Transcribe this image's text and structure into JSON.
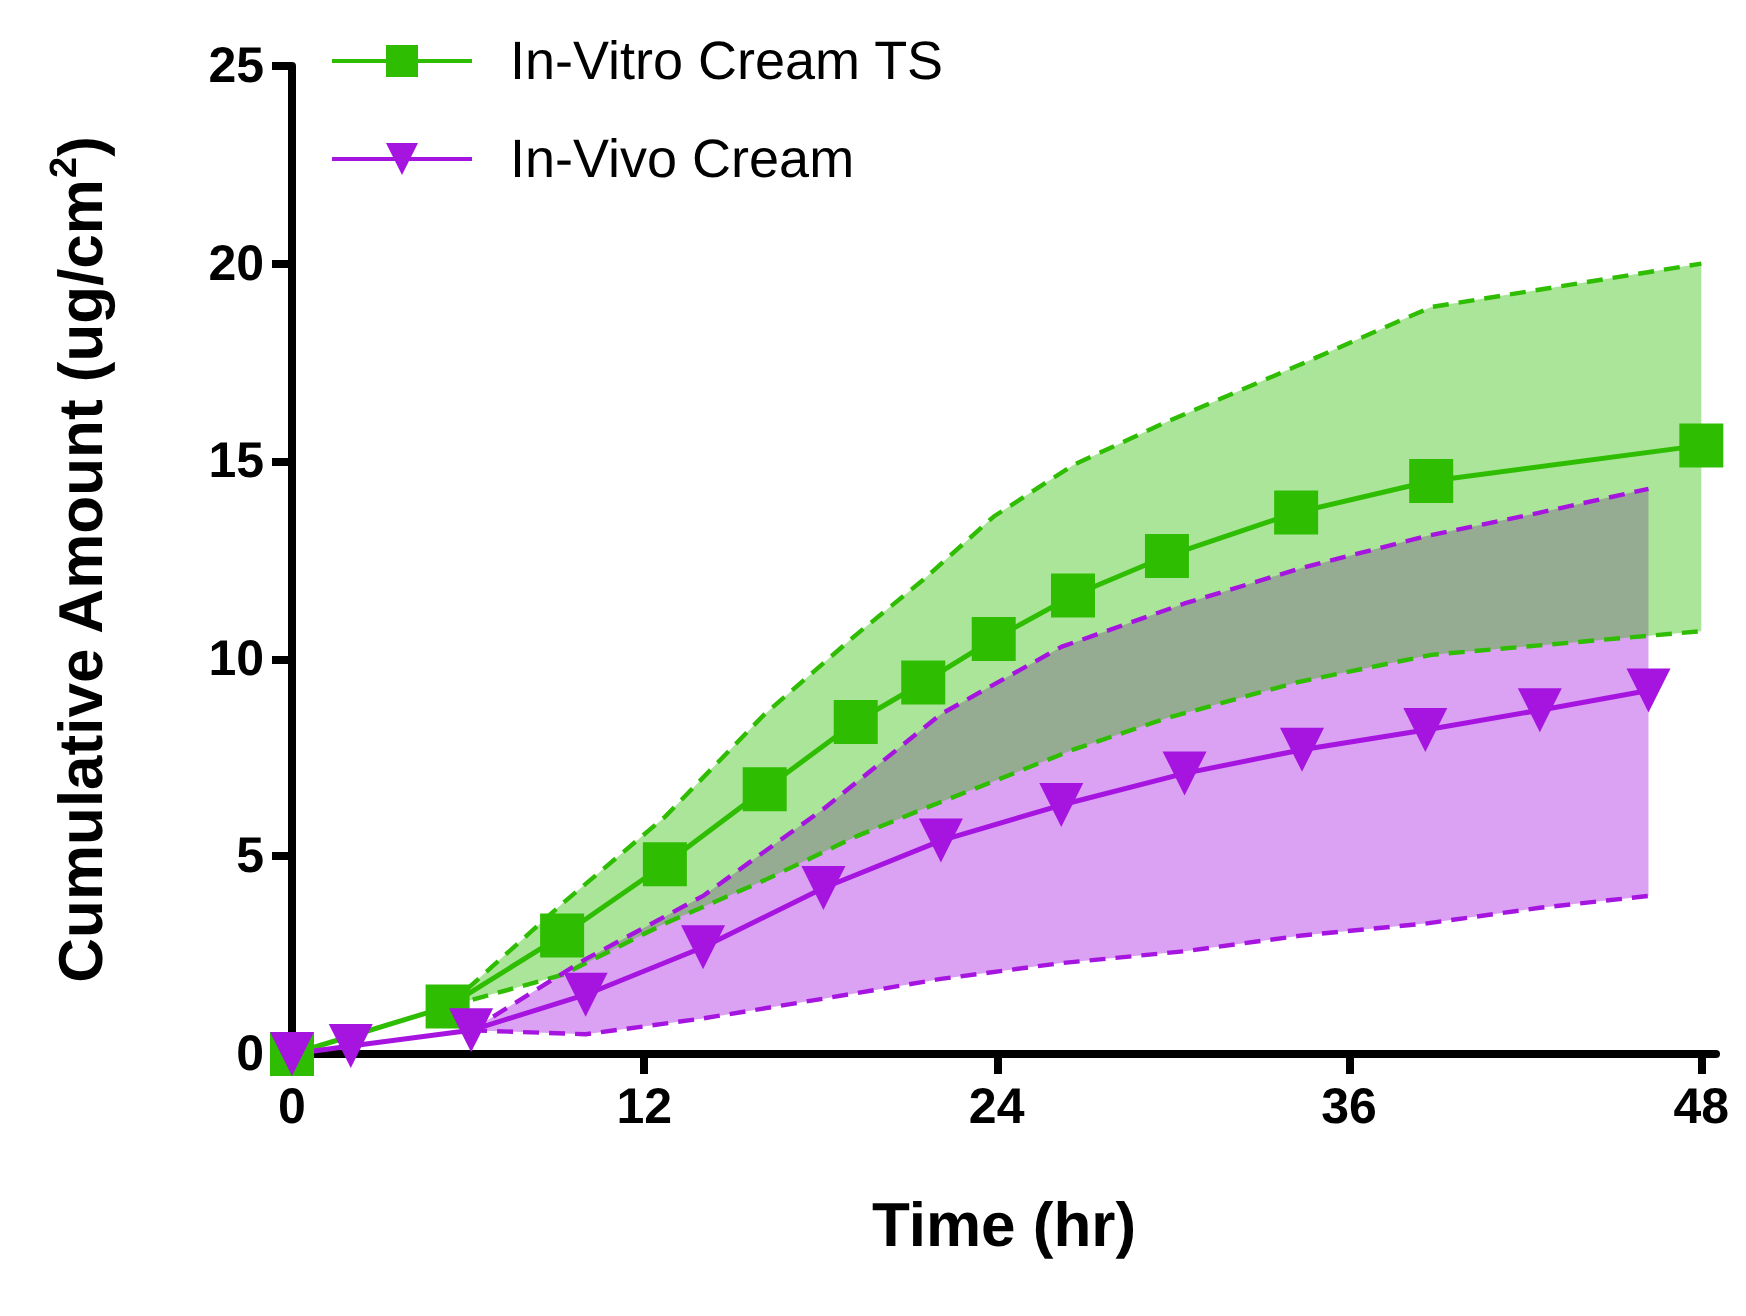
{
  "chart_data": {
    "type": "line",
    "xlabel": "Time (hr)",
    "ylabel": "Cumulative Amount (ug/cm$^{2}$)",
    "xlim": [
      0,
      48.5
    ],
    "xticks": [
      0,
      12,
      24,
      36,
      48
    ],
    "ylim": [
      0,
      25
    ],
    "yticks": [
      0,
      5,
      10,
      15,
      20,
      25
    ],
    "grid": false,
    "legend": "top left",
    "line_style": "solid",
    "series": [
      {
        "name": "In-Vitro Cream TS",
        "color": "#2ebd00",
        "marker": "square",
        "x": [
          0,
          5.3,
          9.2,
          12.7,
          16.1,
          19.2,
          21.5,
          23.9,
          26.6,
          29.8,
          34.2,
          38.8,
          48
        ],
        "values": [
          0,
          1.2,
          3.0,
          4.8,
          6.7,
          8.4,
          9.4,
          10.5,
          11.6,
          12.6,
          13.7,
          14.5,
          15.4
        ],
        "lower": [
          null,
          1.2,
          2.0,
          3.3,
          4.4,
          5.5,
          6.2,
          6.9,
          7.7,
          8.5,
          9.4,
          10.1,
          10.7
        ],
        "upper": [
          null,
          1.2,
          3.8,
          6.0,
          8.6,
          10.6,
          12.0,
          13.6,
          14.9,
          16.0,
          17.4,
          18.9,
          20.0
        ]
      },
      {
        "name": "In-Vivo Cream",
        "color": "#a614e0",
        "marker": "triangle",
        "x": [
          0,
          2,
          6.1,
          10,
          14,
          18.1,
          22.1,
          26.2,
          30.4,
          34.4,
          38.6,
          42.5,
          46.2
        ],
        "values": [
          0,
          0.2,
          0.6,
          1.5,
          2.7,
          4.2,
          5.4,
          6.3,
          7.1,
          7.7,
          8.2,
          8.7,
          9.2
        ],
        "lower": [
          null,
          null,
          0.6,
          0.5,
          0.9,
          1.4,
          1.9,
          2.3,
          2.6,
          3.0,
          3.3,
          3.7,
          4.0
        ],
        "upper": [
          null,
          null,
          0.6,
          2.4,
          4.0,
          6.2,
          8.6,
          10.3,
          11.4,
          12.3,
          13.1,
          13.7,
          14.3
        ]
      },
      {
        "color": "#2ebd00",
        "marker": "none",
        "line_style": "dashed",
        "x": [
          5.3,
          9.2,
          12.7,
          16.1,
          19.2,
          21.5,
          23.9,
          26.6,
          29.8,
          34.2,
          38.8,
          48
        ],
        "values": [
          1.2,
          2.0,
          3.3,
          4.4,
          5.5,
          6.2,
          6.9,
          7.7,
          8.5,
          9.4,
          10.1,
          10.7
        ]
      },
      {
        "color": "#2ebd00",
        "marker": "none",
        "line_style": "dashed",
        "x": [
          5.3,
          9.2,
          12.7,
          16.1,
          19.2,
          21.5,
          23.9,
          26.6,
          29.8,
          34.2,
          38.8,
          48
        ],
        "values": [
          1.2,
          3.8,
          6.0,
          8.6,
          10.6,
          12.0,
          13.6,
          14.9,
          16.0,
          17.4,
          18.9,
          20.0
        ]
      },
      {
        "color": "#a614e0",
        "marker": "none",
        "line_style": "dashed",
        "x": [
          6.1,
          10,
          14,
          18.1,
          22.1,
          26.2,
          30.4,
          34.4,
          38.6,
          42.5,
          46.2
        ],
        "values": [
          0.6,
          0.5,
          0.9,
          1.4,
          1.9,
          2.3,
          2.6,
          3.0,
          3.3,
          3.7,
          4.0
        ]
      },
      {
        "color": "#a614e0",
        "marker": "none",
        "line_style": "dashed",
        "x": [
          6.1,
          10,
          14,
          18.1,
          22.1,
          26.2,
          30.4,
          34.4,
          38.6,
          42.5,
          46.2
        ],
        "values": [
          0.6,
          2.4,
          4.0,
          6.2,
          8.6,
          10.3,
          11.4,
          12.3,
          13.1,
          13.7,
          14.3
        ]
      }
    ]
  }
}
